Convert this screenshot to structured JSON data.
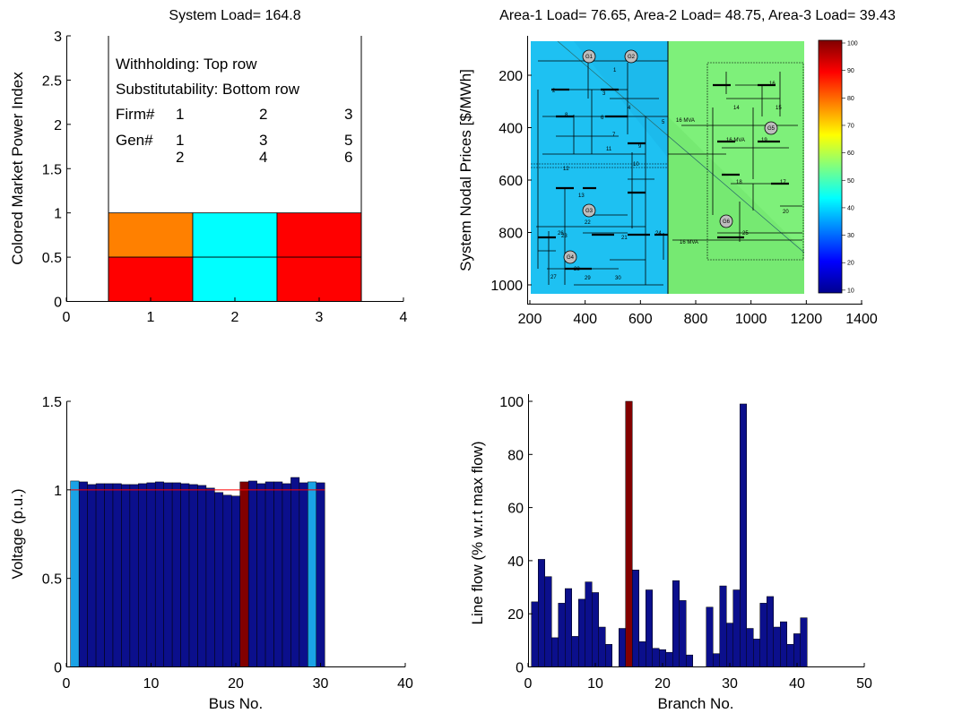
{
  "colors": {
    "bar_dark_blue": "#0b0f8c",
    "bar_light_blue": "#1aa3e6",
    "bar_dark_red": "#820000",
    "orange": "#ff8000",
    "cyan": "#00ffff",
    "red": "#ff0000",
    "area_blue": "#1ec1f2",
    "area_green": "#7ef07a",
    "nominal_line": "#ff0000"
  },
  "chart_data": [
    {
      "id": "market",
      "type": "bar",
      "title": "System Load= 164.8",
      "xlabel": "",
      "ylabel": "Colored Market Power Index",
      "xlim": [
        0,
        4
      ],
      "ylim": [
        0,
        3
      ],
      "xticks": [
        "0",
        "1",
        "2",
        "3",
        "4"
      ],
      "yticks": [
        "0",
        "0.5",
        "1",
        "1.5",
        "2",
        "2.5",
        "3"
      ],
      "annotations": {
        "withholding": "Withholding: Top row",
        "substitutability": "Substitutability: Bottom row",
        "firm_label": "Firm#",
        "gen_label": "Gen#",
        "firms": [
          "1",
          "2",
          "3"
        ],
        "gens_top": [
          "1",
          "3",
          "5"
        ],
        "gens_bottom": [
          "2",
          "4",
          "6"
        ]
      },
      "cells": [
        {
          "firm": 1,
          "row": "top",
          "color": "orange"
        },
        {
          "firm": 2,
          "row": "top",
          "color": "cyan"
        },
        {
          "firm": 3,
          "row": "top",
          "color": "red"
        },
        {
          "firm": 1,
          "row": "bottom",
          "color": "red"
        },
        {
          "firm": 2,
          "row": "bottom",
          "color": "cyan"
        },
        {
          "firm": 3,
          "row": "bottom",
          "color": "red"
        }
      ]
    },
    {
      "id": "prices",
      "type": "heatmap",
      "title": "Area-1 Load= 76.65, Area-2 Load= 48.75, Area-3 Load= 39.43",
      "xlabel": "",
      "ylabel": "System Nodal Prices [$/MWh]",
      "xlim": [
        200,
        1400
      ],
      "ylim": [
        1040,
        80
      ],
      "xticks": [
        "200",
        "400",
        "600",
        "800",
        "1000",
        "1200",
        "1400"
      ],
      "yticks": [
        "200",
        "400",
        "600",
        "800",
        "1000"
      ],
      "colorbar_ticks": [
        "100",
        "90",
        "80",
        "70",
        "60",
        "50",
        "40",
        "30",
        "20",
        "10"
      ],
      "diagram_labels": {
        "gens": [
          "G1",
          "G2",
          "G3",
          "G4",
          "G5",
          "G6"
        ],
        "buses": [
          "1",
          "2",
          "3",
          "4",
          "5",
          "6",
          "7",
          "8",
          "9",
          "10",
          "11",
          "12",
          "13",
          "14",
          "15",
          "16",
          "17",
          "18",
          "19",
          "20",
          "21",
          "22",
          "23",
          "24",
          "25",
          "26",
          "27",
          "28",
          "29",
          "30"
        ],
        "line_a": "16 MVA",
        "line_b": "16 MVA",
        "line_c": "16 MVA"
      }
    },
    {
      "id": "voltage",
      "type": "bar",
      "title": "",
      "xlabel": "Bus No.",
      "ylabel": "Voltage (p.u.)",
      "xlim": [
        0,
        40
      ],
      "ylim": [
        0,
        1.5
      ],
      "xticks": [
        "0",
        "10",
        "20",
        "30",
        "40"
      ],
      "yticks": [
        "0",
        "0.5",
        "1",
        "1.5"
      ],
      "nominal": 1.0,
      "x": [
        1,
        2,
        3,
        4,
        5,
        6,
        7,
        8,
        9,
        10,
        11,
        12,
        13,
        14,
        15,
        16,
        17,
        18,
        19,
        20,
        21,
        22,
        23,
        24,
        25,
        26,
        27,
        28,
        29,
        30
      ],
      "values": [
        1.05,
        1.045,
        1.03,
        1.035,
        1.035,
        1.035,
        1.03,
        1.03,
        1.035,
        1.04,
        1.045,
        1.04,
        1.04,
        1.035,
        1.03,
        1.025,
        1.01,
        0.985,
        0.97,
        0.965,
        1.045,
        1.05,
        1.035,
        1.045,
        1.045,
        1.035,
        1.07,
        1.04,
        1.045,
        1.04
      ],
      "colors": [
        "light",
        "dark",
        "dark",
        "dark",
        "dark",
        "dark",
        "dark",
        "dark",
        "dark",
        "dark",
        "dark",
        "dark",
        "dark",
        "dark",
        "dark",
        "dark",
        "dark",
        "dark",
        "dark",
        "dark",
        "red",
        "dark",
        "dark",
        "dark",
        "dark",
        "dark",
        "dark",
        "dark",
        "light",
        "dark"
      ]
    },
    {
      "id": "lineflow",
      "type": "bar",
      "title": "",
      "xlabel": "Branch No.",
      "ylabel": "Line flow (% w.r.t max flow)",
      "xlim": [
        0,
        50
      ],
      "ylim": [
        0,
        100
      ],
      "xticks": [
        "0",
        "10",
        "20",
        "30",
        "40",
        "50"
      ],
      "yticks": [
        "0",
        "20",
        "40",
        "60",
        "80",
        "100"
      ],
      "x": [
        1,
        2,
        3,
        4,
        5,
        6,
        7,
        8,
        9,
        10,
        11,
        12,
        13,
        14,
        15,
        16,
        17,
        18,
        19,
        20,
        21,
        22,
        23,
        24,
        25,
        26,
        27,
        28,
        29,
        30,
        31,
        32,
        33,
        34,
        35,
        36,
        37,
        38,
        39,
        40,
        41
      ],
      "values": [
        24.5,
        40.5,
        34,
        11,
        24,
        29.5,
        11.5,
        25.5,
        32,
        28,
        15,
        8.5,
        0,
        14.5,
        100,
        36.5,
        9.5,
        29,
        7,
        6.5,
        5.5,
        32.5,
        25,
        4.5,
        0,
        0,
        22.5,
        5,
        30.5,
        16.5,
        29,
        99,
        14.5,
        10.5,
        24,
        26.5,
        15,
        17,
        8.5,
        12.5,
        18.5
      ],
      "colors": [
        "dark",
        "dark",
        "dark",
        "dark",
        "dark",
        "dark",
        "dark",
        "dark",
        "dark",
        "dark",
        "dark",
        "dark",
        "dark",
        "dark",
        "red",
        "dark",
        "dark",
        "dark",
        "dark",
        "dark",
        "dark",
        "dark",
        "dark",
        "dark",
        "dark",
        "dark",
        "dark",
        "dark",
        "dark",
        "dark",
        "dark",
        "dark",
        "dark",
        "dark",
        "dark",
        "dark",
        "dark",
        "dark",
        "dark",
        "dark",
        "dark"
      ]
    }
  ]
}
